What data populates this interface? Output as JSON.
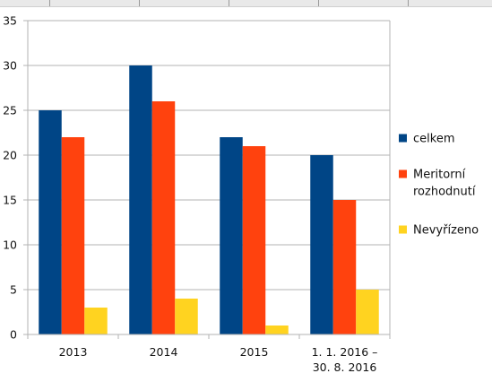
{
  "chart_data": {
    "type": "bar",
    "categories": [
      "2013",
      "2014",
      "2015",
      "1. 1. 2016 –\n30. 8. 2016"
    ],
    "series": [
      {
        "name": "celkem",
        "color": "#004586",
        "values": [
          25,
          30,
          22,
          20
        ]
      },
      {
        "name": "Meritorní rozhodnutí",
        "color": "#ff420e",
        "values": [
          22,
          26,
          21,
          15
        ]
      },
      {
        "name": "Nevyřízeno",
        "color": "#ffd320",
        "values": [
          3,
          4,
          1,
          5
        ]
      }
    ],
    "ylim": [
      0,
      35
    ],
    "yticks": [
      0,
      5,
      10,
      15,
      20,
      25,
      30,
      35
    ],
    "grid": true,
    "legend": "right",
    "legend_lines": [
      [
        "celkem"
      ],
      [
        "Meritorní",
        "rozhodnutí"
      ],
      [
        "Nevyřízeno"
      ]
    ]
  }
}
